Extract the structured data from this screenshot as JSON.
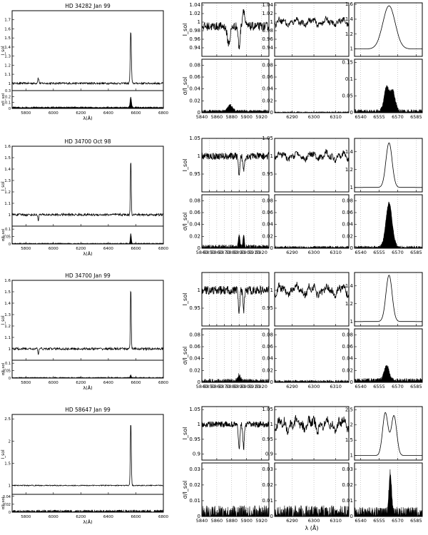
{
  "chart_data": [
    {
      "title": "HD 34282 Jan 99",
      "overview": {
        "type": "line",
        "xlim": [
          5700,
          6800
        ],
        "x_ticks": [
          "5800",
          "6000",
          "6200",
          "6400",
          "6600",
          "6800"
        ],
        "xlabel": "λ(Å)",
        "top": {
          "ylabel": "I_sol",
          "ylim": [
            0.92,
            1.8
          ],
          "y_ticks": [
            "1",
            "1.1",
            "1.2",
            "1.3",
            "1.4",
            "1.5",
            "1.6",
            "1.7"
          ],
          "continuum": 1.0,
          "noise": 0.01,
          "features": [
            [
              5890,
              0.06,
              4
            ],
            [
              6563,
              0.58,
              4
            ]
          ]
        },
        "bottom": {
          "ylabel": "σ/I_sol",
          "ylim": [
            0,
            0.3
          ],
          "y_ticks": [
            "0",
            "0.1",
            "0.2",
            "0.3"
          ],
          "base": 0.02,
          "noise": 0.01,
          "features": [
            [
              6563,
              0.18,
              5
            ]
          ]
        }
      },
      "zooms": [
        {
          "xlim": [
            5840,
            5930
          ],
          "x_ticks": [
            "5840",
            "5860",
            "5880",
            "5900",
            "5920"
          ],
          "top": {
            "ylim": [
              0.92,
              1.045
            ],
            "y_ticks": [
              "0.94",
              "0.96",
              "0.98",
              "1",
              "1.02",
              "1.04"
            ],
            "continuum": 0.99,
            "noise": 0.01,
            "features": [
              [
                5876,
                -0.04,
                2
              ],
              [
                5890,
                -0.05,
                1.2
              ],
              [
                5896,
                0.04,
                1.5
              ]
            ]
          },
          "bottom": {
            "ylim": [
              0,
              0.09
            ],
            "y_ticks": [
              "0",
              "0.02",
              "0.04",
              "0.06",
              "0.08"
            ],
            "base": 0.003,
            "noise": 0.002,
            "features": [
              [
                5878,
                0.01,
                3
              ]
            ]
          }
        },
        {
          "xlim": [
            6282,
            6316
          ],
          "x_ticks": [
            "6290",
            "6300",
            "6310"
          ],
          "top": {
            "ylim": [
              0.92,
              1.045
            ],
            "y_ticks": [
              "0.94",
              "0.96",
              "0.98",
              "1",
              "1.02",
              "1.04"
            ],
            "continuum": 1.0,
            "noise": 0.006,
            "features": []
          },
          "bottom": {
            "ylim": [
              0,
              0.09
            ],
            "y_ticks": [
              "0",
              "0.02",
              "0.04",
              "0.06",
              "0.08"
            ],
            "base": 0.001,
            "noise": 0.001,
            "features": []
          }
        },
        {
          "xlim": [
            6535,
            6590
          ],
          "x_ticks": [
            "6540",
            "6555",
            "6570",
            "6585"
          ],
          "top": {
            "ylim": [
              0.9,
              1.62
            ],
            "y_ticks": [
              "1",
              "1.2",
              "1.4",
              "1.6"
            ],
            "continuum": 1.0,
            "noise": 0.0,
            "features": [
              [
                6563,
                0.58,
                5
              ]
            ]
          },
          "bottom": {
            "ylim": [
              0,
              0.16
            ],
            "y_ticks": [
              "0",
              "0.05",
              "0.1",
              "0.15"
            ],
            "base": 0.005,
            "noise": 0.005,
            "features": [
              [
                6561,
                0.07,
                2
              ],
              [
                6566,
                0.06,
                2
              ]
            ]
          }
        }
      ]
    },
    {
      "title": "HD 34700 Oct 98",
      "overview": {
        "type": "line",
        "xlim": [
          5700,
          6800
        ],
        "x_ticks": [
          "5800",
          "6000",
          "6200",
          "6400",
          "6600",
          "6800"
        ],
        "xlabel": "λ(Å)",
        "top": {
          "ylabel": "I_sol",
          "ylim": [
            0.9,
            1.6
          ],
          "y_ticks": [
            "1",
            "1.1",
            "1.2",
            "1.3",
            "1.4",
            "1.5",
            "1.6"
          ],
          "continuum": 1.0,
          "noise": 0.01,
          "features": [
            [
              6563,
              0.5,
              3
            ],
            [
              5890,
              -0.05,
              3
            ]
          ]
        },
        "bottom": {
          "ylabel": "σ/I_sol",
          "ylim": [
            0,
            0.12
          ],
          "y_ticks": [
            "0",
            "0.05",
            "0.1"
          ],
          "base": 0.004,
          "noise": 0.003,
          "features": [
            [
              6563,
              0.07,
              4
            ]
          ]
        }
      },
      "zooms": [
        {
          "xlim": [
            5840,
            5930
          ],
          "x_ticks": [
            "5840",
            "5850",
            "5860",
            "5870",
            "5880",
            "5890",
            "5900",
            "5910",
            "5920"
          ],
          "top": {
            "ylim": [
              0.9,
              1.05
            ],
            "y_ticks": [
              "0.95",
              "1",
              "1.05"
            ],
            "continuum": 1.0,
            "noise": 0.01,
            "features": [
              [
                5890,
                -0.06,
                1
              ],
              [
                5896,
                -0.04,
                1
              ]
            ]
          },
          "bottom": {
            "ylim": [
              0,
              0.09
            ],
            "y_ticks": [
              "0",
              "0.02",
              "0.04",
              "0.06",
              "0.08"
            ],
            "base": 0.003,
            "noise": 0.003,
            "features": [
              [
                5890,
                0.02,
                1
              ],
              [
                5896,
                0.02,
                1
              ]
            ]
          }
        },
        {
          "xlim": [
            6282,
            6316
          ],
          "x_ticks": [
            "6290",
            "6300",
            "6310"
          ],
          "top": {
            "ylim": [
              0.9,
              1.05
            ],
            "y_ticks": [
              "0.95",
              "1",
              "1.05"
            ],
            "continuum": 1.0,
            "noise": 0.008,
            "features": []
          },
          "bottom": {
            "ylim": [
              0,
              0.09
            ],
            "y_ticks": [
              "0",
              "0.02",
              "0.04",
              "0.06",
              "0.08"
            ],
            "base": 0.002,
            "noise": 0.002,
            "features": []
          }
        },
        {
          "xlim": [
            6535,
            6590
          ],
          "x_ticks": [
            "6540",
            "6555",
            "6570",
            "6585"
          ],
          "top": {
            "ylim": [
              0.95,
              1.55
            ],
            "y_ticks": [
              "1",
              "1.2",
              "1.4"
            ],
            "continuum": 1.0,
            "noise": 0.0,
            "features": [
              [
                6563,
                0.5,
                2.5
              ]
            ]
          },
          "bottom": {
            "ylim": [
              0,
              0.09
            ],
            "y_ticks": [
              "0",
              "0.02",
              "0.04",
              "0.06",
              "0.08"
            ],
            "base": 0.002,
            "noise": 0.002,
            "features": [
              [
                6563,
                0.075,
                2.5
              ]
            ]
          }
        }
      ]
    },
    {
      "title": "HD 34700 Jan 99",
      "overview": {
        "type": "line",
        "xlim": [
          5700,
          6800
        ],
        "x_ticks": [
          "5800",
          "6000",
          "6200",
          "6400",
          "6600",
          "6800"
        ],
        "xlabel": "λ(Å)",
        "top": {
          "ylabel": "I_sol",
          "ylim": [
            0.9,
            1.6
          ],
          "y_ticks": [
            "1",
            "1.1",
            "1.2",
            "1.3",
            "1.4",
            "1.5",
            "1.6"
          ],
          "continuum": 1.0,
          "noise": 0.01,
          "features": [
            [
              6563,
              0.55,
              3
            ],
            [
              5890,
              -0.05,
              3
            ]
          ]
        },
        "bottom": {
          "ylabel": "σ/I_sol",
          "ylim": [
            0,
            0.12
          ],
          "y_ticks": [
            "0",
            "0.05",
            "0.1"
          ],
          "base": 0.004,
          "noise": 0.003,
          "features": [
            [
              6563,
              0.02,
              4
            ]
          ]
        }
      },
      "zooms": [
        {
          "xlim": [
            5840,
            5930
          ],
          "x_ticks": [
            "5840",
            "5850",
            "5860",
            "5870",
            "5880",
            "5890",
            "5900",
            "5910",
            "5920"
          ],
          "top": {
            "ylim": [
              0.9,
              1.05
            ],
            "y_ticks": [
              "0.95",
              "1"
            ],
            "continuum": 1.0,
            "noise": 0.012,
            "features": [
              [
                5890,
                -0.06,
                1
              ],
              [
                5896,
                -0.06,
                1
              ]
            ]
          },
          "bottom": {
            "ylim": [
              0,
              0.09
            ],
            "y_ticks": [
              "0",
              "0.02",
              "0.04",
              "0.06",
              "0.08"
            ],
            "base": 0.003,
            "noise": 0.003,
            "features": [
              [
                5890,
                0.01,
                2
              ]
            ]
          }
        },
        {
          "xlim": [
            6282,
            6316
          ],
          "x_ticks": [
            "6290",
            "6300",
            "6310"
          ],
          "top": {
            "ylim": [
              0.9,
              1.05
            ],
            "y_ticks": [
              "0.95",
              "1"
            ],
            "continuum": 1.0,
            "noise": 0.01,
            "features": []
          },
          "bottom": {
            "ylim": [
              0,
              0.09
            ],
            "y_ticks": [
              "0",
              "0.02",
              "0.04",
              "0.06",
              "0.08"
            ],
            "base": 0.002,
            "noise": 0.002,
            "features": []
          }
        },
        {
          "xlim": [
            6535,
            6590
          ],
          "x_ticks": [
            "6540",
            "6555",
            "6570",
            "6585"
          ],
          "top": {
            "ylim": [
              0.95,
              1.55
            ],
            "y_ticks": [
              "1",
              "1.2",
              "1.4"
            ],
            "continuum": 1.0,
            "noise": 0.0,
            "features": [
              [
                6563,
                0.52,
                2.5
              ]
            ]
          },
          "bottom": {
            "ylim": [
              0,
              0.09
            ],
            "y_ticks": [
              "0",
              "0.02",
              "0.04",
              "0.06",
              "0.08"
            ],
            "base": 0.004,
            "noise": 0.003,
            "features": [
              [
                6561,
                0.025,
                2
              ]
            ]
          }
        }
      ]
    },
    {
      "title": "HD 58647 Jan 99",
      "overview": {
        "type": "line",
        "xlim": [
          5700,
          6800
        ],
        "x_ticks": [
          "5800",
          "6000",
          "6200",
          "6400",
          "6600",
          "6800"
        ],
        "xlabel": "λ(Å)",
        "top": {
          "ylabel": "I_sol",
          "ylim": [
            0.8,
            2.6
          ],
          "y_ticks": [
            "1",
            "1.5",
            "2",
            "2.5"
          ],
          "continuum": 1.0,
          "noise": 0.01,
          "features": [
            [
              6563,
              1.45,
              3.5
            ]
          ]
        },
        "bottom": {
          "ylabel": "σ/I_sol",
          "ylim": [
            0,
            0.045
          ],
          "y_ticks": [
            "0",
            "0.02",
            "0.04"
          ],
          "base": 0.003,
          "noise": 0.003,
          "features": []
        }
      },
      "zooms": [
        {
          "xlim": [
            5840,
            5930
          ],
          "x_ticks": [
            "5840",
            "5860",
            "5880",
            "5900",
            "5920"
          ],
          "top": {
            "ylim": [
              0.88,
              1.06
            ],
            "y_ticks": [
              "0.9",
              "0.95",
              "1",
              "1.05"
            ],
            "continuum": 1.0,
            "noise": 0.01,
            "features": [
              [
                5890,
                -0.08,
                1
              ],
              [
                5896,
                -0.08,
                1
              ]
            ]
          },
          "bottom": {
            "ylim": [
              0,
              0.034
            ],
            "y_ticks": [
              "0",
              "0.01",
              "0.02",
              "0.03"
            ],
            "base": 0.003,
            "noise": 0.004,
            "features": []
          }
        },
        {
          "xlim": [
            6282,
            6316
          ],
          "x_ticks": [
            "6290",
            "6300",
            "6310"
          ],
          "top": {
            "ylim": [
              0.88,
              1.06
            ],
            "y_ticks": [
              "0.9",
              "0.95",
              "1",
              "1.05"
            ],
            "continuum": 1.0,
            "noise": 0.015,
            "features": []
          },
          "bottom": {
            "ylim": [
              0,
              0.034
            ],
            "y_ticks": [
              "0",
              "0.01",
              "0.02",
              "0.03"
            ],
            "base": 0.003,
            "noise": 0.004,
            "features": []
          }
        },
        {
          "xlim": [
            6535,
            6590
          ],
          "x_ticks": [
            "6540",
            "6555",
            "6570",
            "6585"
          ],
          "top": {
            "ylim": [
              0.85,
              2.6
            ],
            "y_ticks": [
              "1",
              "1.5",
              "2",
              "2.5"
            ],
            "continuum": 1.0,
            "noise": 0.0,
            "features": [
              [
                6560,
                1.4,
                2.2
              ],
              [
                6567,
                1.3,
                2.2
              ]
            ]
          },
          "bottom": {
            "ylim": [
              0,
              0.034
            ],
            "y_ticks": [
              "0",
              "0.01",
              "0.02",
              "0.03"
            ],
            "base": 0.003,
            "noise": 0.003,
            "features": [
              [
                6564,
                0.025,
                1
              ]
            ]
          }
        }
      ]
    }
  ],
  "zoom_labels": {
    "top_ylabel": "I_sol",
    "bottom_ylabel": "σ/I_sol",
    "xlabel": "λ (Å)"
  }
}
